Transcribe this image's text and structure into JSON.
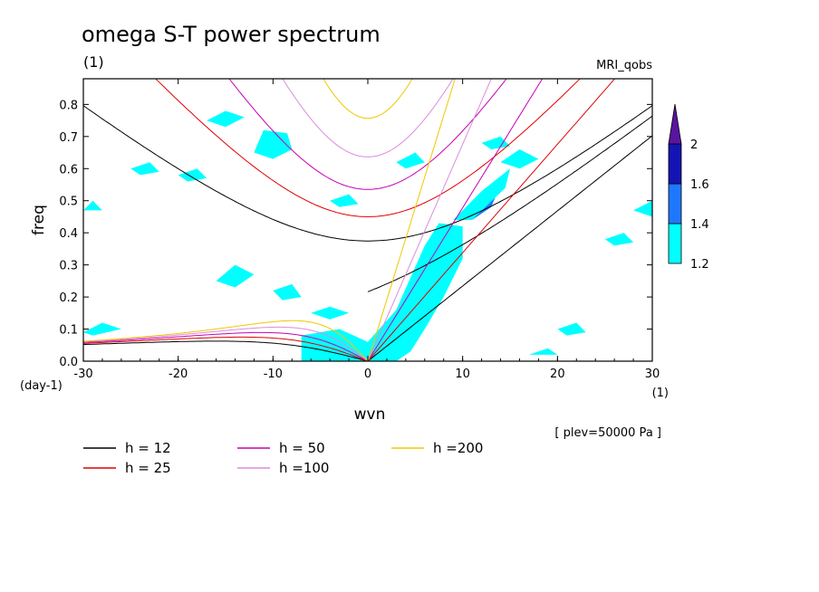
{
  "chart_data": {
    "type": "contour",
    "title": "omega S-T power spectrum",
    "subtitle_left": "(1)",
    "subtitle_right": "MRI_qobs",
    "xlabel": "wvn",
    "xunit": "(1)",
    "ylabel": "freq",
    "yunit": "(day-1)",
    "annotation": "[ plev=50000 Pa ]",
    "xlim": [
      -30,
      30
    ],
    "ylim": [
      0,
      0.88
    ],
    "xticks": [
      "-30",
      "-20",
      "-10",
      "0",
      "10",
      "20",
      "30"
    ],
    "yticks": [
      "0.0",
      "0.1",
      "0.2",
      "0.3",
      "0.4",
      "0.5",
      "0.6",
      "0.7",
      "0.8"
    ],
    "colorbar": {
      "levels": [
        "1.2",
        "1.4",
        "1.6",
        "2"
      ],
      "colors": [
        "#00ffff",
        "#1e78ff",
        "#1414b4",
        "#5a14a0"
      ]
    },
    "dispersion_curves": [
      {
        "name": "h = 12",
        "h": 12,
        "color": "#000000"
      },
      {
        "name": "h = 25",
        "h": 25,
        "color": "#e00000"
      },
      {
        "name": "h = 50",
        "h": 50,
        "color": "#c800b4"
      },
      {
        "name": "h =100",
        "h": 100,
        "color": "#dc8cdc"
      },
      {
        "name": "h =200",
        "h": 200,
        "color": "#f0c800"
      }
    ],
    "shaded_regions": [
      {
        "level": "2",
        "points": [
          [
            0.5,
            0.02
          ],
          [
            3,
            0.1
          ],
          [
            5,
            0.18
          ],
          [
            6,
            0.26
          ],
          [
            7.5,
            0.34
          ],
          [
            8.5,
            0.38
          ],
          [
            7.5,
            0.3
          ],
          [
            6.5,
            0.2
          ],
          [
            4.5,
            0.1
          ],
          [
            2,
            0.03
          ]
        ]
      },
      {
        "level": "1.6",
        "points": [
          [
            0,
            0.0
          ],
          [
            2,
            0.06
          ],
          [
            4,
            0.14
          ],
          [
            5.5,
            0.24
          ],
          [
            7,
            0.34
          ],
          [
            8,
            0.39
          ],
          [
            9,
            0.38
          ],
          [
            8,
            0.3
          ],
          [
            7,
            0.22
          ],
          [
            5,
            0.12
          ],
          [
            3,
            0.04
          ],
          [
            1,
            0.0
          ]
        ]
      },
      {
        "level": "1.6",
        "points": [
          [
            -5.5,
            0.0
          ],
          [
            -5.5,
            0.05
          ],
          [
            -3,
            0.07
          ],
          [
            -1,
            0.04
          ],
          [
            0,
            0.0
          ]
        ]
      },
      {
        "level": "1.6",
        "points": [
          [
            11.5,
            0.47
          ],
          [
            12,
            0.5
          ],
          [
            13,
            0.5
          ],
          [
            12.5,
            0.47
          ]
        ]
      },
      {
        "level": "1.4",
        "points": [
          [
            -6,
            0.0
          ],
          [
            -6,
            0.06
          ],
          [
            -3,
            0.08
          ],
          [
            -0.5,
            0.05
          ],
          [
            1,
            0.07
          ],
          [
            3.5,
            0.16
          ],
          [
            5,
            0.25
          ],
          [
            6.5,
            0.35
          ],
          [
            8,
            0.41
          ],
          [
            9.5,
            0.4
          ],
          [
            9,
            0.3
          ],
          [
            7.5,
            0.2
          ],
          [
            5.5,
            0.1
          ],
          [
            4,
            0.04
          ],
          [
            2,
            0.0
          ]
        ]
      },
      {
        "level": "1.4",
        "points": [
          [
            10,
            0.44
          ],
          [
            12,
            0.51
          ],
          [
            14,
            0.55
          ],
          [
            13,
            0.48
          ],
          [
            11,
            0.44
          ]
        ]
      },
      {
        "level": "1.4",
        "points": [
          [
            -10,
            0.67
          ],
          [
            -9.5,
            0.69
          ],
          [
            -8.5,
            0.68
          ],
          [
            -9,
            0.66
          ]
        ]
      },
      {
        "level": "1.2",
        "points": [
          [
            -7,
            0.0
          ],
          [
            -7,
            0.08
          ],
          [
            -3,
            0.1
          ],
          [
            0,
            0.06
          ],
          [
            3,
            0.16
          ],
          [
            4.5,
            0.26
          ],
          [
            6,
            0.36
          ],
          [
            7.5,
            0.43
          ],
          [
            10,
            0.42
          ],
          [
            10,
            0.32
          ],
          [
            8,
            0.2
          ],
          [
            6,
            0.1
          ],
          [
            4.5,
            0.03
          ],
          [
            3,
            0.0
          ]
        ]
      },
      {
        "level": "1.2",
        "points": [
          [
            9,
            0.44
          ],
          [
            12,
            0.53
          ],
          [
            15,
            0.6
          ],
          [
            14.5,
            0.54
          ],
          [
            11,
            0.44
          ]
        ]
      },
      {
        "level": "1.2",
        "points": [
          [
            -12,
            0.65
          ],
          [
            -11,
            0.72
          ],
          [
            -8.5,
            0.71
          ],
          [
            -8,
            0.66
          ],
          [
            -10,
            0.63
          ]
        ]
      },
      {
        "level": "1.2",
        "points": [
          [
            -30,
            0.09
          ],
          [
            -28,
            0.12
          ],
          [
            -26,
            0.1
          ],
          [
            -29,
            0.08
          ]
        ]
      },
      {
        "level": "1.2",
        "points": [
          [
            -16,
            0.25
          ],
          [
            -14,
            0.3
          ],
          [
            -12,
            0.27
          ],
          [
            -14,
            0.23
          ]
        ]
      },
      {
        "level": "1.2",
        "points": [
          [
            -10,
            0.22
          ],
          [
            -8,
            0.24
          ],
          [
            -7,
            0.2
          ],
          [
            -9,
            0.19
          ]
        ]
      },
      {
        "level": "1.2",
        "points": [
          [
            -17,
            0.75
          ],
          [
            -15,
            0.78
          ],
          [
            -13,
            0.76
          ],
          [
            -15,
            0.73
          ]
        ]
      },
      {
        "level": "1.2",
        "points": [
          [
            3,
            0.62
          ],
          [
            5,
            0.65
          ],
          [
            6,
            0.62
          ],
          [
            4,
            0.6
          ]
        ]
      },
      {
        "level": "1.2",
        "points": [
          [
            -30,
            0.47
          ],
          [
            -29,
            0.5
          ],
          [
            -28,
            0.47
          ]
        ]
      },
      {
        "level": "1.2",
        "points": [
          [
            28,
            0.47
          ],
          [
            30,
            0.5
          ],
          [
            30,
            0.45
          ]
        ]
      },
      {
        "level": "1.2",
        "points": [
          [
            14,
            0.62
          ],
          [
            16,
            0.66
          ],
          [
            18,
            0.63
          ],
          [
            16,
            0.6
          ]
        ]
      },
      {
        "level": "1.2",
        "points": [
          [
            -6,
            0.15
          ],
          [
            -4,
            0.17
          ],
          [
            -2,
            0.15
          ],
          [
            -4,
            0.13
          ]
        ]
      },
      {
        "level": "1.2",
        "points": [
          [
            12,
            0.68
          ],
          [
            14,
            0.7
          ],
          [
            15,
            0.67
          ],
          [
            13,
            0.66
          ]
        ]
      },
      {
        "level": "1.2",
        "points": [
          [
            -4,
            0.5
          ],
          [
            -2,
            0.52
          ],
          [
            -1,
            0.49
          ],
          [
            -3,
            0.48
          ]
        ]
      },
      {
        "level": "1.2",
        "points": [
          [
            25,
            0.38
          ],
          [
            27,
            0.4
          ],
          [
            28,
            0.37
          ],
          [
            26,
            0.36
          ]
        ]
      },
      {
        "level": "1.2",
        "points": [
          [
            -20,
            0.58
          ],
          [
            -18,
            0.6
          ],
          [
            -17,
            0.57
          ],
          [
            -19,
            0.56
          ]
        ]
      },
      {
        "level": "1.2",
        "points": [
          [
            20,
            0.1
          ],
          [
            22,
            0.12
          ],
          [
            23,
            0.09
          ],
          [
            21,
            0.08
          ]
        ]
      },
      {
        "level": "1.2",
        "points": [
          [
            -25,
            0.6
          ],
          [
            -23,
            0.62
          ],
          [
            -22,
            0.59
          ],
          [
            -24,
            0.58
          ]
        ]
      },
      {
        "level": "1.2",
        "points": [
          [
            17,
            0.02
          ],
          [
            19,
            0.04
          ],
          [
            20,
            0.02
          ]
        ]
      }
    ]
  }
}
